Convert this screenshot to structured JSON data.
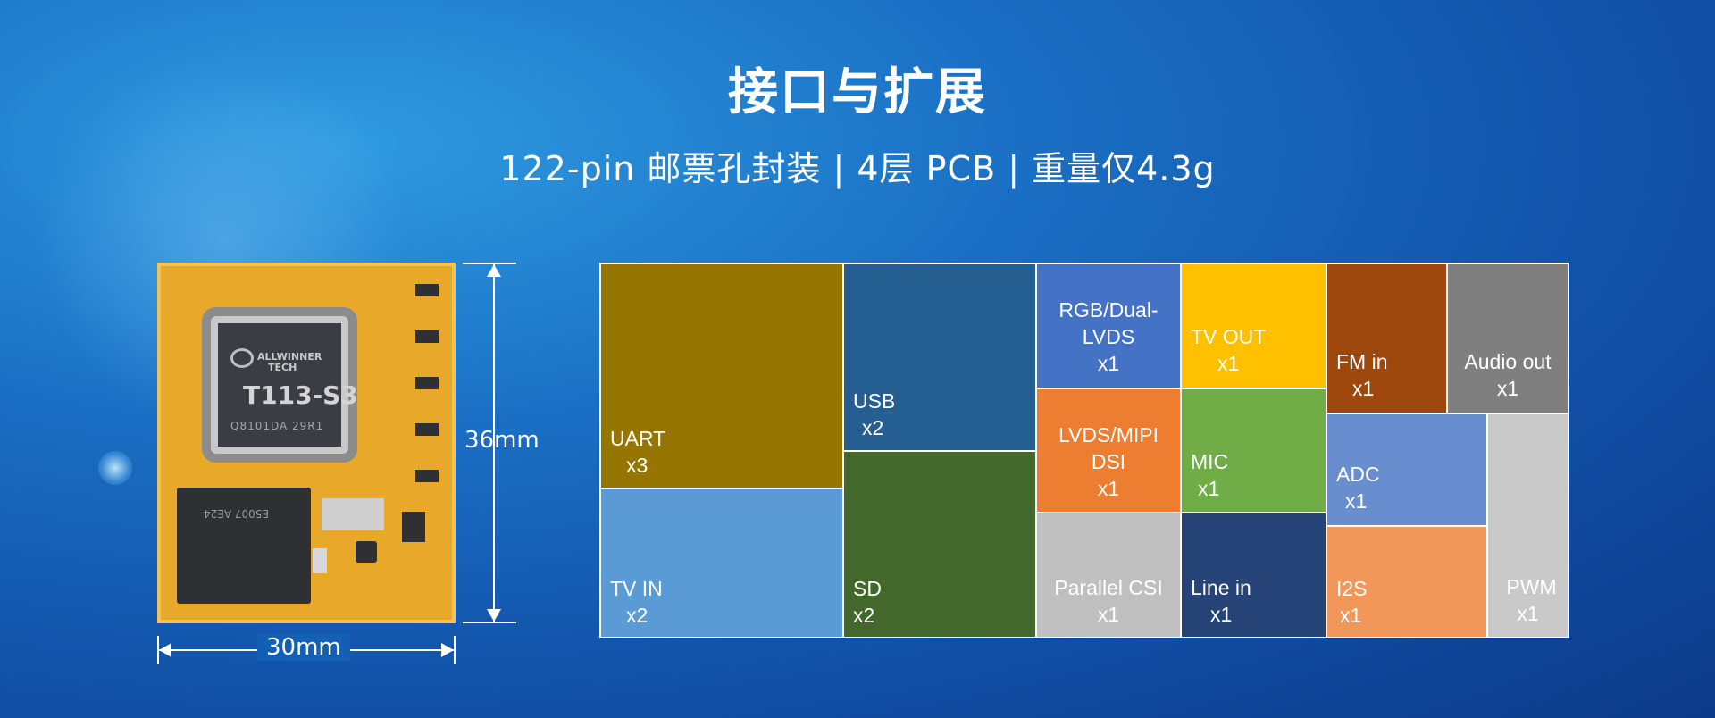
{
  "title": "接口与扩展",
  "subtitle": "122-pin 邮票孔封装 | 4层 PCB | 重量仅4.3g",
  "board": {
    "chip_brand_line1": "ALLWINNER",
    "chip_brand_line2": "TECH",
    "chip_model": "T113-S3",
    "chip_code": "Q8101DA 29R1",
    "flash_code": "E5007 AE24",
    "height_label": "36mm",
    "width_label": "30mm"
  },
  "colors": {
    "uart": "#967400",
    "tvin": "#5b9bd5",
    "usb": "#255e91",
    "sd": "#43682b",
    "rgb": "#4472c4",
    "lvds": "#ed7d31",
    "parallel": "#bfbfbf",
    "tvout": "#ffc000",
    "mic": "#70ad47",
    "linein": "#264478",
    "fmin": "#9e480e",
    "audioout": "#7f7f7f",
    "adc": "#698ed0",
    "i2s": "#f1975a",
    "pwm": "#c9c9c9"
  },
  "chart_data": {
    "type": "treemap",
    "items": [
      {
        "label": "UART",
        "count": "x3"
      },
      {
        "label": "TV IN",
        "count": "x2"
      },
      {
        "label": "USB",
        "count": "x2"
      },
      {
        "label": "SD",
        "count": "x2"
      },
      {
        "label": "RGB/Dual-LVDS",
        "count": "x1"
      },
      {
        "label": "LVDS/MIPI DSI",
        "count": "x1"
      },
      {
        "label": "Parallel CSI",
        "count": "x1"
      },
      {
        "label": "TV OUT",
        "count": "x1"
      },
      {
        "label": "MIC",
        "count": "x1"
      },
      {
        "label": "Line in",
        "count": "x1"
      },
      {
        "label": "FM in",
        "count": "x1"
      },
      {
        "label": "Audio out",
        "count": "x1"
      },
      {
        "label": "ADC",
        "count": "x1"
      },
      {
        "label": "I2S",
        "count": "x1"
      },
      {
        "label": "PWM",
        "count": "x1"
      }
    ]
  }
}
